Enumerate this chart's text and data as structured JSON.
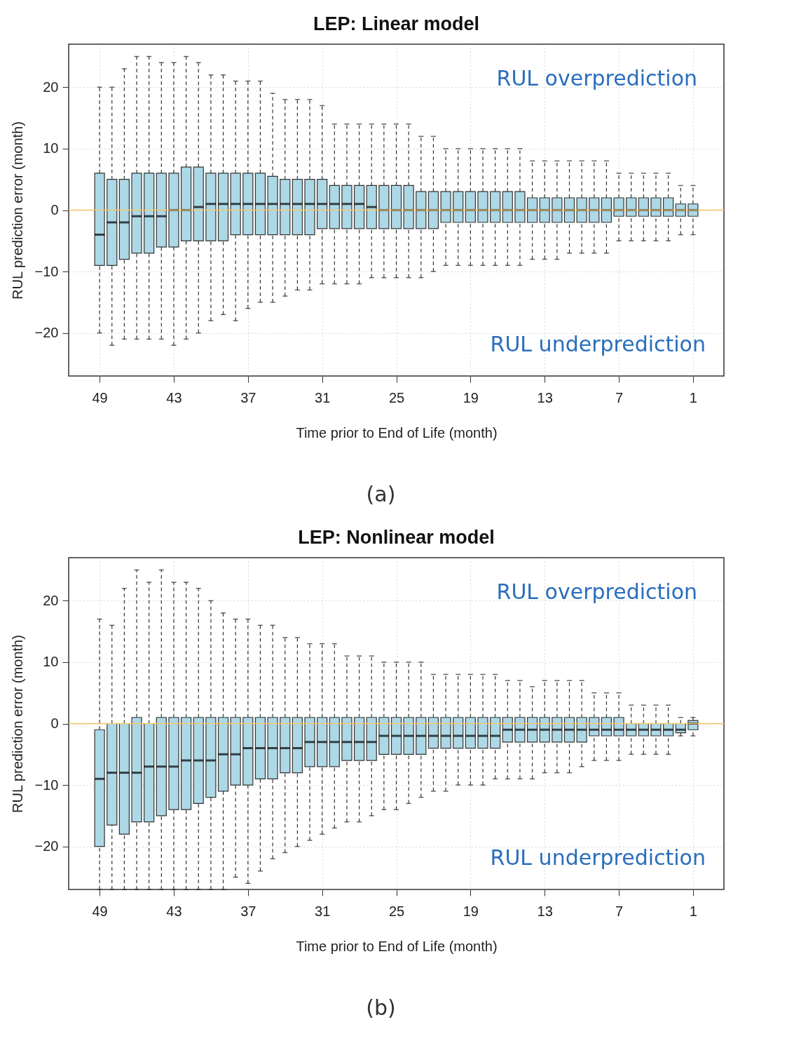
{
  "chart_data": [
    {
      "type": "box",
      "title": "LEP: Linear model",
      "xlabel": "Time prior to End of Life (month)",
      "ylabel": "RUL prediction error (month)",
      "x": [
        49,
        48,
        47,
        46,
        45,
        44,
        43,
        42,
        41,
        40,
        39,
        38,
        37,
        36,
        35,
        34,
        33,
        32,
        31,
        30,
        29,
        28,
        27,
        26,
        25,
        24,
        23,
        22,
        21,
        20,
        19,
        18,
        17,
        16,
        15,
        14,
        13,
        12,
        11,
        10,
        9,
        8,
        7,
        6,
        5,
        4,
        3,
        2,
        1
      ],
      "xlim": [
        51.5,
        -1.5
      ],
      "xticks": [
        49,
        43,
        37,
        31,
        25,
        19,
        13,
        7,
        1
      ],
      "ylim": [
        -27,
        27
      ],
      "yticks": [
        -20,
        -10,
        0,
        10,
        20
      ],
      "grid": true,
      "ref_lines": [
        {
          "axis": "y",
          "value": 0,
          "color": "#f7c66b"
        }
      ],
      "annotations": [
        "RUL overprediction",
        "RUL underprediction",
        "(a)"
      ],
      "series": [
        {
          "color": "#add8e6",
          "boxes": [
            {
              "low": -20,
              "q1": -9,
              "median": -4,
              "q3": 6,
              "high": 20
            },
            {
              "low": -22,
              "q1": -9,
              "median": -2,
              "q3": 5,
              "high": 20
            },
            {
              "low": -21,
              "q1": -8,
              "median": -2,
              "q3": 5,
              "high": 23
            },
            {
              "low": -21,
              "q1": -7,
              "median": -1,
              "q3": 6,
              "high": 25
            },
            {
              "low": -21,
              "q1": -7,
              "median": -1,
              "q3": 6,
              "high": 25
            },
            {
              "low": -21,
              "q1": -6,
              "median": -1,
              "q3": 6,
              "high": 24
            },
            {
              "low": -22,
              "q1": -6,
              "median": 0,
              "q3": 6,
              "high": 24
            },
            {
              "low": -21,
              "q1": -5,
              "median": 0,
              "q3": 7,
              "high": 25
            },
            {
              "low": -20,
              "q1": -5,
              "median": 0.5,
              "q3": 7,
              "high": 24
            },
            {
              "low": -18,
              "q1": -5,
              "median": 1,
              "q3": 6,
              "high": 22
            },
            {
              "low": -17,
              "q1": -5,
              "median": 1,
              "q3": 6,
              "high": 22
            },
            {
              "low": -18,
              "q1": -4,
              "median": 1,
              "q3": 6,
              "high": 21
            },
            {
              "low": -16,
              "q1": -4,
              "median": 1,
              "q3": 6,
              "high": 21
            },
            {
              "low": -15,
              "q1": -4,
              "median": 1,
              "q3": 6,
              "high": 21
            },
            {
              "low": -15,
              "q1": -4,
              "median": 1,
              "q3": 5.5,
              "high": 19
            },
            {
              "low": -14,
              "q1": -4,
              "median": 1,
              "q3": 5,
              "high": 18
            },
            {
              "low": -13,
              "q1": -4,
              "median": 1,
              "q3": 5,
              "high": 18
            },
            {
              "low": -13,
              "q1": -4,
              "median": 1,
              "q3": 5,
              "high": 18
            },
            {
              "low": -12,
              "q1": -3,
              "median": 1,
              "q3": 5,
              "high": 17
            },
            {
              "low": -12,
              "q1": -3,
              "median": 1,
              "q3": 4,
              "high": 14
            },
            {
              "low": -12,
              "q1": -3,
              "median": 1,
              "q3": 4,
              "high": 14
            },
            {
              "low": -12,
              "q1": -3,
              "median": 1,
              "q3": 4,
              "high": 14
            },
            {
              "low": -11,
              "q1": -3,
              "median": 0.5,
              "q3": 4,
              "high": 14
            },
            {
              "low": -11,
              "q1": -3,
              "median": 0,
              "q3": 4,
              "high": 14
            },
            {
              "low": -11,
              "q1": -3,
              "median": 0,
              "q3": 4,
              "high": 14
            },
            {
              "low": -11,
              "q1": -3,
              "median": 0,
              "q3": 4,
              "high": 14
            },
            {
              "low": -11,
              "q1": -3,
              "median": 0,
              "q3": 3,
              "high": 12
            },
            {
              "low": -10,
              "q1": -3,
              "median": 0,
              "q3": 3,
              "high": 12
            },
            {
              "low": -9,
              "q1": -2,
              "median": 0,
              "q3": 3,
              "high": 10
            },
            {
              "low": -9,
              "q1": -2,
              "median": 0,
              "q3": 3,
              "high": 10
            },
            {
              "low": -9,
              "q1": -2,
              "median": 0,
              "q3": 3,
              "high": 10
            },
            {
              "low": -9,
              "q1": -2,
              "median": 0,
              "q3": 3,
              "high": 10
            },
            {
              "low": -9,
              "q1": -2,
              "median": 0,
              "q3": 3,
              "high": 10
            },
            {
              "low": -9,
              "q1": -2,
              "median": 0,
              "q3": 3,
              "high": 10
            },
            {
              "low": -9,
              "q1": -2,
              "median": 0,
              "q3": 3,
              "high": 10
            },
            {
              "low": -8,
              "q1": -2,
              "median": 0,
              "q3": 2,
              "high": 8
            },
            {
              "low": -8,
              "q1": -2,
              "median": 0,
              "q3": 2,
              "high": 8
            },
            {
              "low": -8,
              "q1": -2,
              "median": 0,
              "q3": 2,
              "high": 8
            },
            {
              "low": -7,
              "q1": -2,
              "median": 0,
              "q3": 2,
              "high": 8
            },
            {
              "low": -7,
              "q1": -2,
              "median": 0,
              "q3": 2,
              "high": 8
            },
            {
              "low": -7,
              "q1": -2,
              "median": 0,
              "q3": 2,
              "high": 8
            },
            {
              "low": -7,
              "q1": -2,
              "median": 0,
              "q3": 2,
              "high": 8
            },
            {
              "low": -5,
              "q1": -1,
              "median": 0,
              "q3": 2,
              "high": 6
            },
            {
              "low": -5,
              "q1": -1,
              "median": 0,
              "q3": 2,
              "high": 6
            },
            {
              "low": -5,
              "q1": -1,
              "median": 0,
              "q3": 2,
              "high": 6
            },
            {
              "low": -5,
              "q1": -1,
              "median": 0,
              "q3": 2,
              "high": 6
            },
            {
              "low": -5,
              "q1": -1,
              "median": 0,
              "q3": 2,
              "high": 6
            },
            {
              "low": -4,
              "q1": -1,
              "median": 0,
              "q3": 1,
              "high": 4
            },
            {
              "low": -4,
              "q1": -1,
              "median": 0,
              "q3": 1,
              "high": 4
            }
          ]
        }
      ]
    },
    {
      "type": "box",
      "title": "LEP: Nonlinear model",
      "xlabel": "Time prior to End of Life (month)",
      "ylabel": "RUL prediction error (month)",
      "x": [
        49,
        48,
        47,
        46,
        45,
        44,
        43,
        42,
        41,
        40,
        39,
        38,
        37,
        36,
        35,
        34,
        33,
        32,
        31,
        30,
        29,
        28,
        27,
        26,
        25,
        24,
        23,
        22,
        21,
        20,
        19,
        18,
        17,
        16,
        15,
        14,
        13,
        12,
        11,
        10,
        9,
        8,
        7,
        6,
        5,
        4,
        3,
        2,
        1
      ],
      "xlim": [
        51.5,
        -1.5
      ],
      "xticks": [
        49,
        43,
        37,
        31,
        25,
        19,
        13,
        7,
        1
      ],
      "ylim": [
        -27,
        27
      ],
      "yticks": [
        -20,
        -10,
        0,
        10,
        20
      ],
      "grid": true,
      "ref_lines": [
        {
          "axis": "y",
          "value": 0,
          "color": "#f7c66b"
        }
      ],
      "annotations": [
        "RUL overprediction",
        "RUL underprediction",
        "(b)"
      ],
      "series": [
        {
          "color": "#add8e6",
          "boxes": [
            {
              "low": -27,
              "q1": -20,
              "median": -9,
              "q3": -1,
              "high": 17
            },
            {
              "low": -27,
              "q1": -16.5,
              "median": -8,
              "q3": 0,
              "high": 16
            },
            {
              "low": -27,
              "q1": -18,
              "median": -8,
              "q3": 0,
              "high": 22
            },
            {
              "low": -27,
              "q1": -16,
              "median": -8,
              "q3": 1,
              "high": 25
            },
            {
              "low": -27,
              "q1": -16,
              "median": -7,
              "q3": 0,
              "high": 23
            },
            {
              "low": -27,
              "q1": -15,
              "median": -7,
              "q3": 1,
              "high": 25
            },
            {
              "low": -27,
              "q1": -14,
              "median": -7,
              "q3": 1,
              "high": 23
            },
            {
              "low": -27,
              "q1": -14,
              "median": -6,
              "q3": 1,
              "high": 23
            },
            {
              "low": -27,
              "q1": -13,
              "median": -6,
              "q3": 1,
              "high": 22
            },
            {
              "low": -27,
              "q1": -12,
              "median": -6,
              "q3": 1,
              "high": 20
            },
            {
              "low": -27,
              "q1": -11,
              "median": -5,
              "q3": 1,
              "high": 18
            },
            {
              "low": -25,
              "q1": -10,
              "median": -5,
              "q3": 1,
              "high": 17
            },
            {
              "low": -26,
              "q1": -10,
              "median": -4,
              "q3": 1,
              "high": 17
            },
            {
              "low": -24,
              "q1": -9,
              "median": -4,
              "q3": 1,
              "high": 16
            },
            {
              "low": -22,
              "q1": -9,
              "median": -4,
              "q3": 1,
              "high": 16
            },
            {
              "low": -21,
              "q1": -8,
              "median": -4,
              "q3": 1,
              "high": 14
            },
            {
              "low": -20,
              "q1": -8,
              "median": -4,
              "q3": 1,
              "high": 14
            },
            {
              "low": -19,
              "q1": -7,
              "median": -3,
              "q3": 1,
              "high": 13
            },
            {
              "low": -18,
              "q1": -7,
              "median": -3,
              "q3": 1,
              "high": 13
            },
            {
              "low": -17,
              "q1": -7,
              "median": -3,
              "q3": 1,
              "high": 13
            },
            {
              "low": -16,
              "q1": -6,
              "median": -3,
              "q3": 1,
              "high": 11
            },
            {
              "low": -16,
              "q1": -6,
              "median": -3,
              "q3": 1,
              "high": 11
            },
            {
              "low": -15,
              "q1": -6,
              "median": -3,
              "q3": 1,
              "high": 11
            },
            {
              "low": -14,
              "q1": -5,
              "median": -2,
              "q3": 1,
              "high": 10
            },
            {
              "low": -14,
              "q1": -5,
              "median": -2,
              "q3": 1,
              "high": 10
            },
            {
              "low": -13,
              "q1": -5,
              "median": -2,
              "q3": 1,
              "high": 10
            },
            {
              "low": -12,
              "q1": -5,
              "median": -2,
              "q3": 1,
              "high": 10
            },
            {
              "low": -11,
              "q1": -4,
              "median": -2,
              "q3": 1,
              "high": 8
            },
            {
              "low": -11,
              "q1": -4,
              "median": -2,
              "q3": 1,
              "high": 8
            },
            {
              "low": -10,
              "q1": -4,
              "median": -2,
              "q3": 1,
              "high": 8
            },
            {
              "low": -10,
              "q1": -4,
              "median": -2,
              "q3": 1,
              "high": 8
            },
            {
              "low": -10,
              "q1": -4,
              "median": -2,
              "q3": 1,
              "high": 8
            },
            {
              "low": -9,
              "q1": -4,
              "median": -2,
              "q3": 1,
              "high": 8
            },
            {
              "low": -9,
              "q1": -3,
              "median": -1,
              "q3": 1,
              "high": 7
            },
            {
              "low": -9,
              "q1": -3,
              "median": -1,
              "q3": 1,
              "high": 7
            },
            {
              "low": -9,
              "q1": -3,
              "median": -1,
              "q3": 1,
              "high": 6
            },
            {
              "low": -8,
              "q1": -3,
              "median": -1,
              "q3": 1,
              "high": 7
            },
            {
              "low": -8,
              "q1": -3,
              "median": -1,
              "q3": 1,
              "high": 7
            },
            {
              "low": -8,
              "q1": -3,
              "median": -1,
              "q3": 1,
              "high": 7
            },
            {
              "low": -7,
              "q1": -3,
              "median": -1,
              "q3": 1,
              "high": 7
            },
            {
              "low": -6,
              "q1": -2,
              "median": -1,
              "q3": 1,
              "high": 5
            },
            {
              "low": -6,
              "q1": -2,
              "median": -1,
              "q3": 1,
              "high": 5
            },
            {
              "low": -6,
              "q1": -2,
              "median": -1,
              "q3": 1,
              "high": 5
            },
            {
              "low": -5,
              "q1": -2,
              "median": -1,
              "q3": 0,
              "high": 3
            },
            {
              "low": -5,
              "q1": -2,
              "median": -1,
              "q3": 0,
              "high": 3
            },
            {
              "low": -5,
              "q1": -2,
              "median": -1,
              "q3": 0,
              "high": 3
            },
            {
              "low": -5,
              "q1": -2,
              "median": -1,
              "q3": 0,
              "high": 3
            },
            {
              "low": -2,
              "q1": -1.5,
              "median": -1,
              "q3": 0,
              "high": 1
            },
            {
              "low": -2,
              "q1": -1,
              "median": 0,
              "q3": 0.5,
              "high": 1
            }
          ]
        }
      ]
    }
  ]
}
